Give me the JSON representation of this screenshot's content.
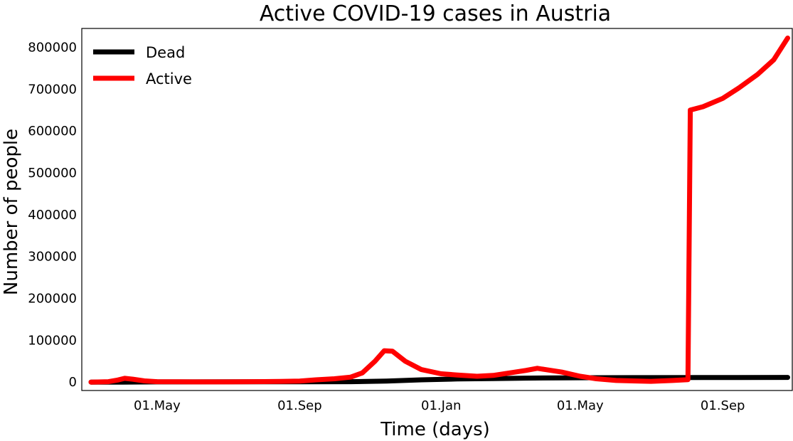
{
  "chart_data": {
    "type": "line",
    "title": "Active COVID-19 cases in Austria",
    "xlabel": "Time (days)",
    "ylabel": "Number of people",
    "xlim": [
      "2020-02-26",
      "2021-10-31"
    ],
    "ylim": [
      -20000,
      845000
    ],
    "x_ticks": [
      {
        "date": "2020-05-01",
        "label": "01.May"
      },
      {
        "date": "2020-09-01",
        "label": "01.Sep"
      },
      {
        "date": "2021-01-01",
        "label": "01.Jan"
      },
      {
        "date": "2021-05-01",
        "label": "01.May"
      },
      {
        "date": "2021-09-01",
        "label": "01.Sep"
      }
    ],
    "y_ticks": [
      0,
      100000,
      200000,
      300000,
      400000,
      500000,
      600000,
      700000,
      800000
    ],
    "grid": false,
    "legend": "top-left",
    "series": [
      {
        "name": "Dead",
        "color": "#000000",
        "points": [
          [
            "2020-03-05",
            0
          ],
          [
            "2020-04-01",
            100
          ],
          [
            "2020-05-01",
            600
          ],
          [
            "2020-07-01",
            700
          ],
          [
            "2020-09-01",
            750
          ],
          [
            "2020-10-15",
            1000
          ],
          [
            "2020-11-15",
            2500
          ],
          [
            "2020-12-15",
            5500
          ],
          [
            "2021-01-15",
            7500
          ],
          [
            "2021-02-15",
            8500
          ],
          [
            "2021-03-15",
            9500
          ],
          [
            "2021-04-15",
            10200
          ],
          [
            "2021-05-15",
            10600
          ],
          [
            "2021-07-01",
            10800
          ],
          [
            "2021-08-15",
            10900
          ],
          [
            "2021-09-15",
            11000
          ],
          [
            "2021-10-27",
            11200
          ]
        ]
      },
      {
        "name": "Active",
        "color": "#ff0000",
        "points": [
          [
            "2020-03-05",
            0
          ],
          [
            "2020-03-20",
            1000
          ],
          [
            "2020-03-28",
            5000
          ],
          [
            "2020-04-03",
            9000
          ],
          [
            "2020-04-10",
            7000
          ],
          [
            "2020-04-20",
            3000
          ],
          [
            "2020-05-01",
            1000
          ],
          [
            "2020-06-01",
            500
          ],
          [
            "2020-07-01",
            600
          ],
          [
            "2020-08-01",
            1200
          ],
          [
            "2020-08-15",
            1800
          ],
          [
            "2020-09-01",
            2500
          ],
          [
            "2020-09-15",
            5500
          ],
          [
            "2020-10-01",
            8000
          ],
          [
            "2020-10-15",
            12000
          ],
          [
            "2020-10-25",
            22000
          ],
          [
            "2020-11-05",
            50000
          ],
          [
            "2020-11-13",
            75000
          ],
          [
            "2020-11-20",
            74000
          ],
          [
            "2020-12-01",
            50000
          ],
          [
            "2020-12-15",
            30000
          ],
          [
            "2021-01-01",
            20000
          ],
          [
            "2021-01-15",
            17000
          ],
          [
            "2021-02-01",
            14000
          ],
          [
            "2021-02-15",
            16000
          ],
          [
            "2021-03-01",
            22000
          ],
          [
            "2021-03-15",
            28000
          ],
          [
            "2021-03-25",
            33000
          ],
          [
            "2021-04-01",
            30000
          ],
          [
            "2021-04-15",
            24000
          ],
          [
            "2021-05-01",
            14000
          ],
          [
            "2021-05-15",
            8000
          ],
          [
            "2021-06-01",
            4000
          ],
          [
            "2021-07-01",
            2000
          ],
          [
            "2021-07-20",
            4000
          ],
          [
            "2021-08-02",
            6000
          ],
          [
            "2021-08-04",
            650000
          ],
          [
            "2021-08-15",
            658000
          ],
          [
            "2021-09-01",
            678000
          ],
          [
            "2021-09-15",
            703000
          ],
          [
            "2021-10-01",
            735000
          ],
          [
            "2021-10-15",
            770000
          ],
          [
            "2021-10-27",
            822000
          ]
        ]
      }
    ]
  }
}
